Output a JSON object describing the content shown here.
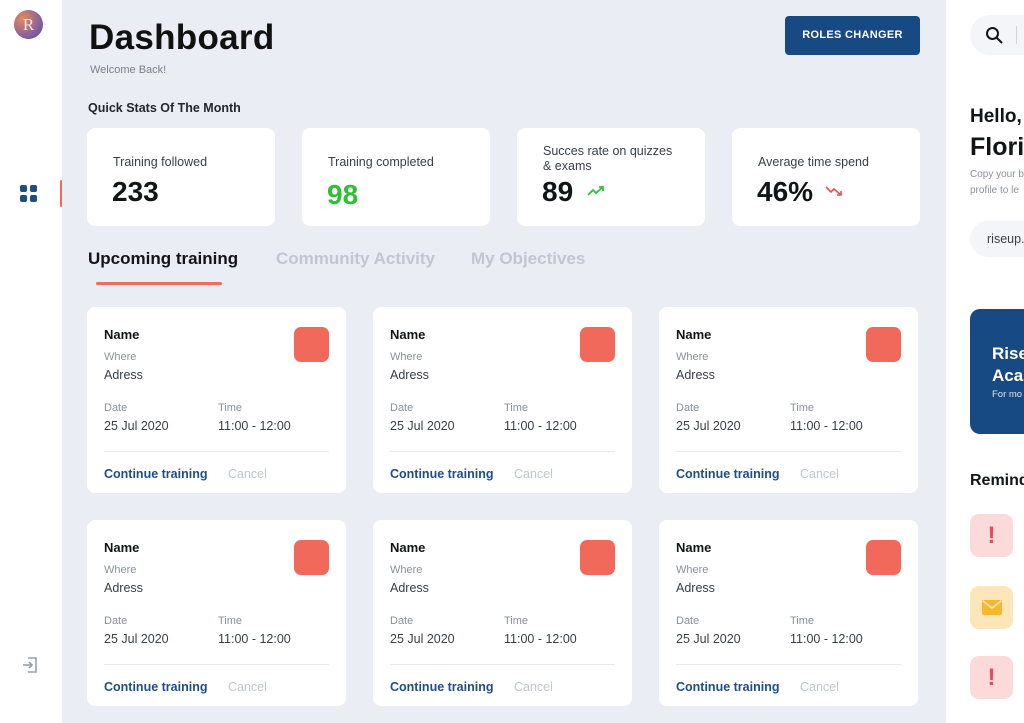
{
  "rail": {
    "avatar_letter": "R",
    "accent_color": "#f06b5b"
  },
  "header": {
    "title": "Dashboard",
    "subtitle": "Welcome Back!",
    "roles_button": "ROLES CHANGER"
  },
  "stats": {
    "section_title": "Quick Stats Of The Month",
    "items": [
      {
        "label": "Training followed",
        "value": "233"
      },
      {
        "label": "Training completed",
        "value": "98"
      },
      {
        "label": "Succes rate on quizzes & exams",
        "value": "89",
        "trend": "up"
      },
      {
        "label": "Average time spend",
        "value": "46%",
        "trend": "down"
      }
    ]
  },
  "tabs": [
    {
      "label": "Upcoming training",
      "active": true
    },
    {
      "label": "Community Activity",
      "active": false
    },
    {
      "label": "My Objectives",
      "active": false
    }
  ],
  "card_labels": {
    "name": "Name",
    "where": "Where",
    "address": "Adress",
    "date_label": "Date",
    "time_label": "Time",
    "continue": "Continue training",
    "cancel": "Cancel"
  },
  "cards": [
    {
      "date": "25 Jul 2020",
      "time": "11:00 - 12:00"
    },
    {
      "date": "25 Jul 2020",
      "time": "11:00 - 12:00"
    },
    {
      "date": "25 Jul 2020",
      "time": "11:00 - 12:00"
    },
    {
      "date": "25 Jul 2020",
      "time": "11:00 - 12:00"
    },
    {
      "date": "25 Jul 2020",
      "time": "11:00 - 12:00"
    },
    {
      "date": "25 Jul 2020",
      "time": "11:00 - 12:00"
    }
  ],
  "right": {
    "hello": "Hello,",
    "name": "Flori",
    "copy_line1": "Copy your b",
    "copy_line2": "profile to le",
    "link": "riseup.",
    "promo_title_1": "Rise",
    "promo_title_2": "Aca",
    "promo_sub": "For mo",
    "reminders_title": "Remind",
    "reminder_icons": [
      "alert-icon",
      "mail-icon",
      "alert-icon"
    ]
  },
  "colors": {
    "primary": "#174a82",
    "accent": "#f0695a",
    "positive": "#2fbf33",
    "negative": "#e84b5a",
    "background": "#eaedf3"
  }
}
